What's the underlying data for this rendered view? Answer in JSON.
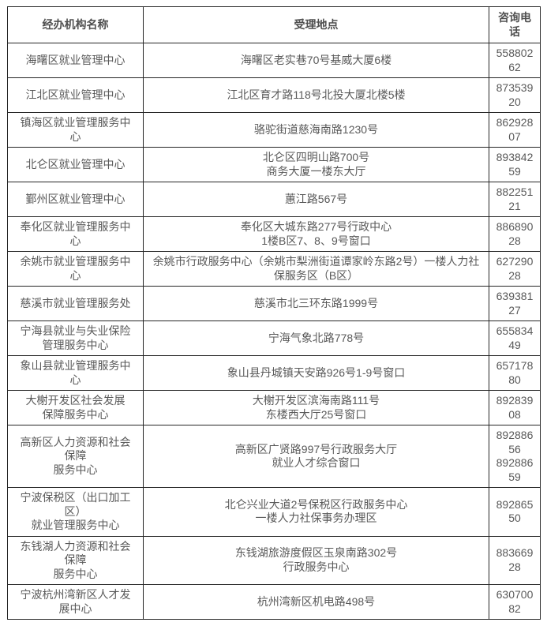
{
  "colors": {
    "background": "#ffffff",
    "border": "#262626",
    "text": "#595959"
  },
  "table": {
    "headers": [
      {
        "label": "经办机构名称"
      },
      {
        "label": "受理地点"
      },
      {
        "label": "咨询电\n话"
      }
    ],
    "rows": [
      {
        "name": "海曙区就业管理中心",
        "address": "海曙区老实巷70号基威大厦6楼",
        "phone": "558802\n62"
      },
      {
        "name": "江北区就业管理中心",
        "address": "江北区育才路118号北投大厦北楼5楼",
        "phone": "873539\n20"
      },
      {
        "name": "镇海区就业管理服务中\n心",
        "address": "骆驼街道慈海南路1230号",
        "phone": "862928\n07"
      },
      {
        "name": "北仑区就业管理中心",
        "address": "北仑区四明山路700号\n商务大厦一楼东大厅",
        "phone": "893842\n59"
      },
      {
        "name": "鄞州区就业管理中心",
        "address": "蕙江路567号",
        "phone": "882251\n21"
      },
      {
        "name": "奉化区就业管理服务中\n心",
        "address": "奉化区大城东路277号行政中心\n1楼B区7、8、9号窗口",
        "phone": "886890\n28"
      },
      {
        "name": "余姚市就业管理服务中\n心",
        "address": "余姚市行政服务中心（余姚市梨洲街道谭家岭东路2号）一楼人力社\n保服务区（B区）",
        "phone": "627290\n28"
      },
      {
        "name": "慈溪市就业管理服务处",
        "address": "慈溪市北三环东路1999号",
        "phone": "639381\n27"
      },
      {
        "name": "宁海县就业与失业保险\n管理服务中心",
        "address": "宁海气象北路778号",
        "phone": "655834\n49"
      },
      {
        "name": "象山县就业管理服务中\n心",
        "address": "象山县丹城镇天安路926号1-9号窗口",
        "phone": "657178\n80"
      },
      {
        "name": "大榭开发区社会发展\n保障服务中心",
        "address": "大榭开发区滨海南路111号\n东楼西大厅25号窗口",
        "phone": "892839\n08"
      },
      {
        "name": "高新区人力资源和社会\n保障\n服务中心",
        "address": "高新区广贤路997号行政服务大厅\n就业人才综合窗口",
        "phone": "892886\n56\n892886\n59"
      },
      {
        "name": "宁波保税区（出口加工\n区）\n就业管理服务中心",
        "address": "北仑兴业大道2号保税区行政服务中心\n一楼人力社保事务办理区",
        "phone": "892865\n50"
      },
      {
        "name": "东钱湖人力资源和社会\n保障\n服务中心",
        "address": "东钱湖旅游度假区玉泉南路302号\n行政服务中心",
        "phone": "883669\n28"
      },
      {
        "name": "宁波杭州湾新区人才发\n展中心",
        "address": "杭州湾新区机电路498号",
        "phone": "630700\n82"
      }
    ]
  }
}
